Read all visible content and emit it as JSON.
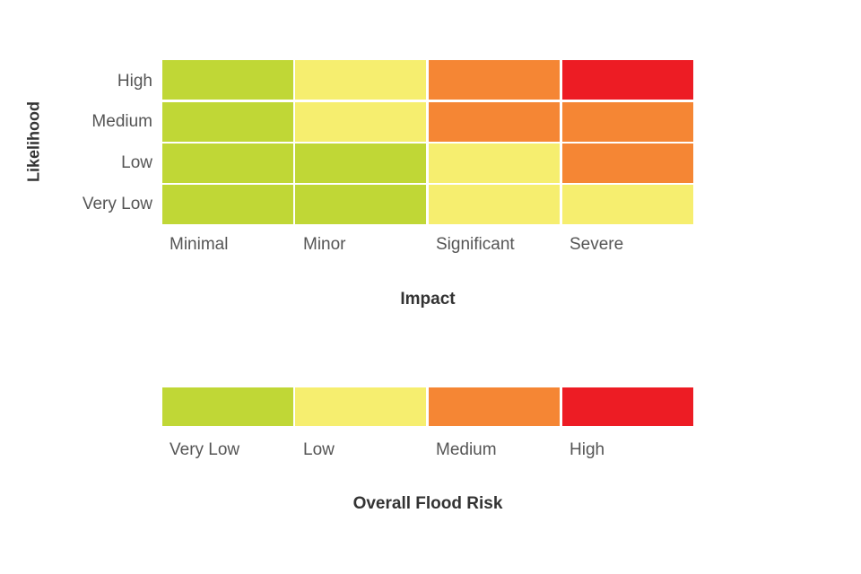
{
  "matrix": {
    "y_title": "Likelihood",
    "x_title": "Impact",
    "rows": [
      "High",
      "Medium",
      "Low",
      "Very Low"
    ],
    "columns": [
      "Minimal",
      "Minor",
      "Significant",
      "Severe"
    ],
    "cells": [
      [
        "very_low",
        "low",
        "medium",
        "high"
      ],
      [
        "very_low",
        "low",
        "medium",
        "medium"
      ],
      [
        "very_low",
        "very_low",
        "low",
        "medium"
      ],
      [
        "very_low",
        "very_low",
        "low",
        "low"
      ]
    ]
  },
  "legend": {
    "title": "Overall Flood Risk",
    "levels": [
      {
        "key": "very_low",
        "label": "Very Low"
      },
      {
        "key": "low",
        "label": "Low"
      },
      {
        "key": "medium",
        "label": "Medium"
      },
      {
        "key": "high",
        "label": "High"
      }
    ]
  },
  "colors": {
    "very_low": "#c0d736",
    "low": "#f6ee6f",
    "medium": "#f58634",
    "high": "#ed1c24"
  }
}
